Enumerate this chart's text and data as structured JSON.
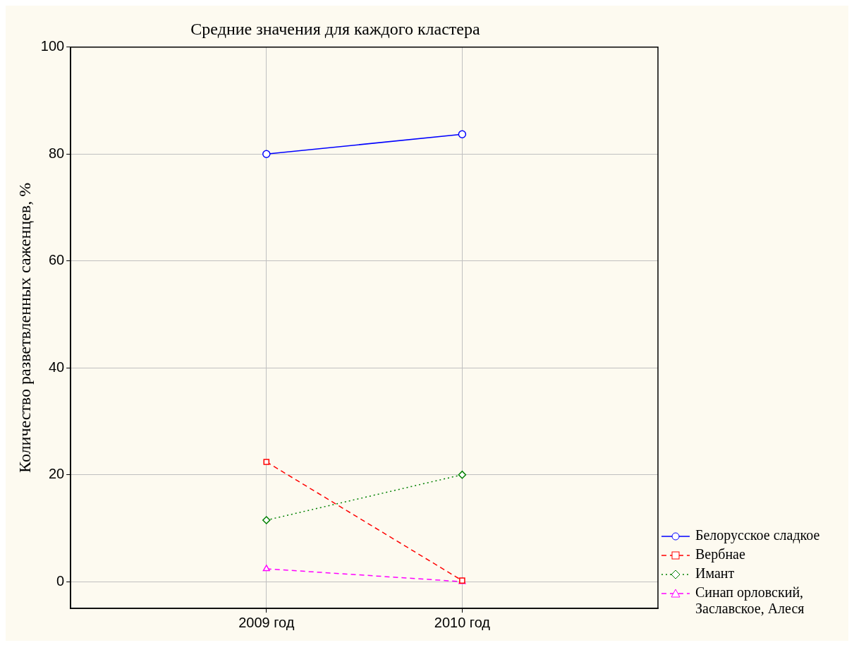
{
  "chart_data": {
    "type": "line",
    "title": "Средние значения для каждого кластера",
    "ylabel": "Количество разветвленных саженцев, %",
    "categories": [
      "2009 год",
      "2010 год"
    ],
    "series": [
      {
        "name": "Белорусское сладкое",
        "color": "#0000ff",
        "values": [
          80.0,
          83.7
        ],
        "marker": "circle",
        "line_style": "solid"
      },
      {
        "name": "Вербнае",
        "color": "#ff0000",
        "values": [
          22.4,
          0.2
        ],
        "marker": "square",
        "line_style": "dashed"
      },
      {
        "name": "Имант",
        "color": "#008000",
        "values": [
          11.5,
          20.0
        ],
        "marker": "diamond",
        "line_style": "dotted"
      },
      {
        "name": "Синап орловский, Заславское, Алеся",
        "color": "#ff00ff",
        "values": [
          2.4,
          0.0
        ],
        "marker": "triangle",
        "line_style": "dashed"
      }
    ],
    "ylim": [
      -5,
      100
    ],
    "yticks": [
      0,
      20,
      40,
      60,
      80,
      100
    ],
    "grid": true,
    "legend": "bottom right"
  }
}
